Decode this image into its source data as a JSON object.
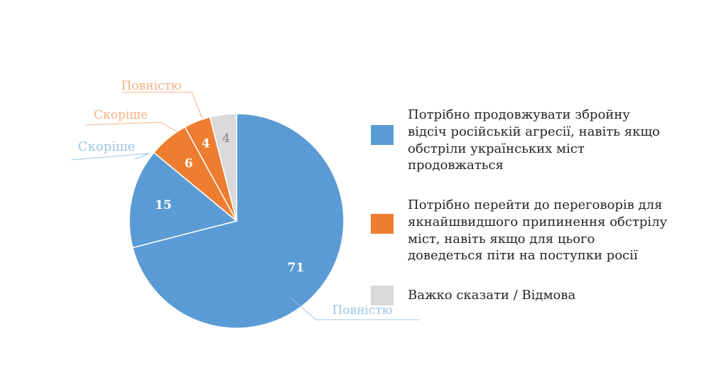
{
  "chart_data": {
    "type": "pie",
    "title": "",
    "slices": [
      {
        "key": "blue_full",
        "value": 71,
        "label": "71",
        "callout": "Повністю",
        "color": "#5b9bd5",
        "label_color": "#ffffff",
        "callout_color": "#9dc3e6"
      },
      {
        "key": "blue_rather",
        "value": 15,
        "label": "15",
        "callout": "Скоріше",
        "color": "#5b9bd5",
        "label_color": "#ffffff",
        "callout_color": "#9dc3e6"
      },
      {
        "key": "orange_rather",
        "value": 6,
        "label": "6",
        "callout": "Скоріше",
        "color": "#ed7d31",
        "label_color": "#ffffff",
        "callout_color": "#f4b183"
      },
      {
        "key": "orange_full",
        "value": 4,
        "label": "4",
        "callout": "Повністю",
        "color": "#ed7d31",
        "label_color": "#ffffff",
        "callout_color": "#f4b183"
      },
      {
        "key": "gray",
        "value": 4,
        "label": "4",
        "callout": "",
        "color": "#d9d9d9",
        "label_color": "#7f7f7f",
        "callout_color": ""
      }
    ],
    "legend": {
      "placement": "right",
      "entries": [
        {
          "text": "Потрібно продовжувати збройну відсіч російській агресії, навіть якщо обстріли українських міст продовжаться",
          "color": "#5b9bd5"
        },
        {
          "text": "Потрібно перейти до переговорів для якнайшвидшого припинення обстрілу міст, навіть якщо для цього доведеться піти на поступки росії",
          "color": "#ed7d31"
        },
        {
          "text": "Важко сказати / Відмова",
          "color": "#d9d9d9"
        }
      ]
    }
  }
}
